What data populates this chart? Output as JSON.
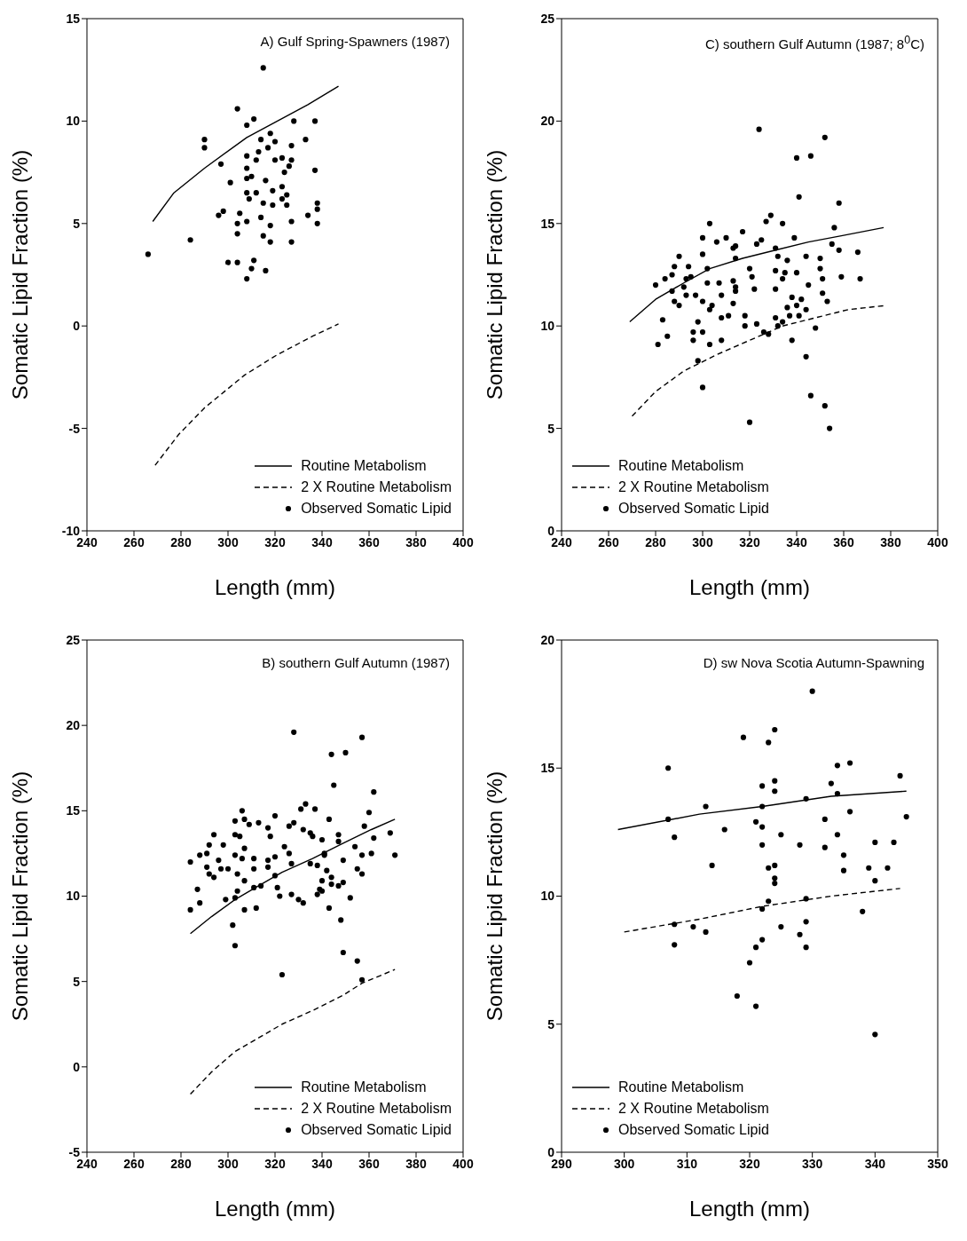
{
  "chart_data": [
    {
      "type": "scatter",
      "title": "A) Gulf Spring-Spawners (1987)",
      "xlabel": "Length (mm)",
      "ylabel": "Somatic Lipid Fraction (%)",
      "xlim": [
        240,
        400
      ],
      "xticks": [
        240,
        260,
        280,
        300,
        320,
        340,
        360,
        380,
        400
      ],
      "ylim": [
        -10,
        15
      ],
      "yticks": [
        -10,
        -5,
        0,
        5,
        10,
        15
      ],
      "legend": "bottom right",
      "series": [
        {
          "name": "Routine Metabolism",
          "type": "line",
          "color": "#000000",
          "line_style": "solid",
          "x": [
            268,
            277,
            290,
            308,
            321,
            334,
            347
          ],
          "values": [
            5.1,
            6.5,
            7.7,
            9.2,
            10.0,
            10.8,
            11.7
          ]
        },
        {
          "name": "2 X Routine Metabolism",
          "type": "line",
          "color": "#000000",
          "line_style": "dashed",
          "x": [
            269,
            279,
            290,
            307,
            321,
            336,
            347
          ],
          "values": [
            -6.8,
            -5.3,
            -4.0,
            -2.4,
            -1.4,
            -0.5,
            0.1
          ]
        },
        {
          "name": "Observed Somatic Lipid",
          "type": "scatter",
          "color": "#000000",
          "marker": "circle",
          "x": [
            315,
            304,
            311,
            308,
            290,
            290,
            318,
            314,
            320,
            317,
            313,
            327,
            328,
            337,
            333,
            308,
            312,
            320,
            323,
            327,
            297,
            308,
            326,
            324,
            337,
            310,
            301,
            308,
            316,
            308,
            319,
            323,
            312,
            309,
            325,
            323,
            315,
            319,
            325,
            338,
            338,
            296,
            298,
            305,
            308,
            314,
            304,
            304,
            318,
            327,
            334,
            338,
            315,
            318,
            327,
            284,
            266,
            300,
            304,
            311,
            310,
            316,
            308
          ],
          "values": [
            12.6,
            10.6,
            10.1,
            9.8,
            9.1,
            8.7,
            9.4,
            9.1,
            9.0,
            8.7,
            8.5,
            8.8,
            10.0,
            10.0,
            9.1,
            8.3,
            8.1,
            8.1,
            8.2,
            8.1,
            7.9,
            7.7,
            7.8,
            7.5,
            7.6,
            7.3,
            7.0,
            7.2,
            7.1,
            6.5,
            6.6,
            6.8,
            6.5,
            6.2,
            6.4,
            6.2,
            6.0,
            5.9,
            5.9,
            6.0,
            5.7,
            5.4,
            5.6,
            5.5,
            5.1,
            5.3,
            5.0,
            4.5,
            4.9,
            5.1,
            5.4,
            5.0,
            4.4,
            4.1,
            4.1,
            4.2,
            3.5,
            3.1,
            3.1,
            3.2,
            2.8,
            2.7,
            2.3
          ]
        }
      ]
    },
    {
      "type": "scatter",
      "title": "C) southern Gulf Autumn (1987; 8$^{0}$C)",
      "xlabel": "Length (mm)",
      "ylabel": "Somatic Lipid Fraction (%)",
      "xlim": [
        240,
        400
      ],
      "xticks": [
        240,
        260,
        280,
        300,
        320,
        340,
        360,
        380,
        400
      ],
      "ylim": [
        0,
        25
      ],
      "yticks": [
        0,
        5,
        10,
        15,
        20,
        25
      ],
      "legend": "bottom left",
      "series": [
        {
          "name": "Routine Metabolism",
          "type": "line",
          "color": "#000000",
          "line_style": "solid",
          "x": [
            269,
            280,
            292,
            303,
            317,
            331,
            345,
            359,
            377
          ],
          "values": [
            10.2,
            11.3,
            12.1,
            12.8,
            13.3,
            13.7,
            14.1,
            14.4,
            14.8
          ]
        },
        {
          "name": "2 X Routine Metabolism",
          "type": "line",
          "color": "#000000",
          "line_style": "dashed",
          "x": [
            270,
            280,
            292,
            306,
            320,
            334,
            348,
            362,
            378
          ],
          "values": [
            5.6,
            6.8,
            7.8,
            8.6,
            9.3,
            10.0,
            10.4,
            10.8,
            11.0
          ]
        },
        {
          "name": "Observed Somatic Lipid",
          "type": "scatter",
          "color": "#000000",
          "marker": "circle",
          "x": [
            324,
            352,
            340,
            346,
            341,
            358,
            329,
            327,
            303,
            334,
            356,
            317,
            300,
            306,
            310,
            323,
            325,
            313,
            314,
            339,
            355,
            331,
            358,
            366,
            290,
            300,
            314,
            332,
            336,
            344,
            350,
            288,
            294,
            302,
            320,
            331,
            335,
            340,
            350,
            284,
            287,
            293,
            295,
            302,
            307,
            313,
            321,
            334,
            351,
            359,
            367,
            280,
            287,
            292,
            314,
            322,
            331,
            345,
            293,
            297,
            308,
            314,
            338,
            342,
            351,
            288,
            290,
            300,
            304,
            313,
            340,
            353,
            336,
            344,
            303,
            308,
            311,
            318,
            331,
            334,
            337,
            341,
            283,
            298,
            318,
            323,
            332,
            348,
            296,
            300,
            326,
            328,
            281,
            285,
            296,
            303,
            308,
            338,
            298,
            344,
            300,
            346,
            352,
            320,
            354
          ],
          "values": [
            19.6,
            19.2,
            18.2,
            18.3,
            16.3,
            16.0,
            15.4,
            15.1,
            15.0,
            15.0,
            14.8,
            14.6,
            14.3,
            14.1,
            14.3,
            14.0,
            14.2,
            13.8,
            13.9,
            14.3,
            14.0,
            13.8,
            13.7,
            13.6,
            13.4,
            13.5,
            13.3,
            13.4,
            13.2,
            13.4,
            13.3,
            12.9,
            12.9,
            12.8,
            12.8,
            12.7,
            12.6,
            12.6,
            12.8,
            12.3,
            12.5,
            12.3,
            12.4,
            12.1,
            12.1,
            12.2,
            12.4,
            12.3,
            12.3,
            12.4,
            12.3,
            12.0,
            11.7,
            11.9,
            11.9,
            11.8,
            11.8,
            12.0,
            11.5,
            11.5,
            11.5,
            11.7,
            11.4,
            11.3,
            11.6,
            11.2,
            11.0,
            11.2,
            11.0,
            11.1,
            11.0,
            11.2,
            10.9,
            10.8,
            10.8,
            10.4,
            10.5,
            10.5,
            10.4,
            10.2,
            10.5,
            10.5,
            10.3,
            10.2,
            10.0,
            10.1,
            10.0,
            9.9,
            9.7,
            9.7,
            9.7,
            9.6,
            9.1,
            9.5,
            9.3,
            9.1,
            9.3,
            9.3,
            8.3,
            8.5,
            7.0,
            6.6,
            6.1,
            5.3,
            5.0
          ]
        }
      ]
    },
    {
      "type": "scatter",
      "title": "B) southern Gulf Autumn (1987)",
      "xlabel": "Length (mm)",
      "ylabel": "Somatic Lipid Fraction (%)",
      "xlim": [
        240,
        400
      ],
      "xticks": [
        240,
        260,
        280,
        300,
        320,
        340,
        360,
        380,
        400
      ],
      "ylim": [
        -5,
        25
      ],
      "yticks": [
        -5,
        0,
        5,
        10,
        15,
        20,
        25
      ],
      "legend": "bottom right",
      "series": [
        {
          "name": "Routine Metabolism",
          "type": "line",
          "color": "#000000",
          "line_style": "solid",
          "x": [
            284,
            293,
            303,
            313,
            323,
            336,
            349,
            361,
            371
          ],
          "values": [
            7.8,
            8.8,
            9.8,
            10.6,
            11.4,
            12.2,
            13.1,
            13.9,
            14.5
          ]
        },
        {
          "name": "2 X Routine Metabolism",
          "type": "line",
          "color": "#000000",
          "line_style": "dashed",
          "x": [
            284,
            293,
            303,
            313,
            323,
            336,
            349,
            357,
            371
          ],
          "values": [
            -1.6,
            -0.3,
            0.9,
            1.7,
            2.5,
            3.3,
            4.2,
            4.9,
            5.7
          ]
        },
        {
          "name": "Observed Somatic Lipid",
          "type": "scatter",
          "color": "#000000",
          "marker": "circle",
          "x": [
            328,
            357,
            344,
            350,
            345,
            362,
            333,
            331,
            306,
            337,
            360,
            320,
            303,
            307,
            309,
            313,
            328,
            326,
            317,
            318,
            332,
            343,
            358,
            369,
            294,
            303,
            305,
            335,
            336,
            340,
            347,
            362,
            292,
            298,
            307,
            324,
            326,
            341,
            347,
            354,
            357,
            361,
            371,
            284,
            288,
            291,
            296,
            303,
            306,
            311,
            317,
            320,
            335,
            338,
            341,
            349,
            291,
            297,
            300,
            311,
            317,
            327,
            355,
            357,
            292,
            294,
            304,
            307,
            320,
            342,
            344,
            349,
            340,
            344,
            347,
            287,
            304,
            311,
            314,
            321,
            339,
            340,
            338,
            299,
            303,
            322,
            327,
            330,
            332,
            352,
            288,
            284,
            307,
            312,
            343,
            302,
            348,
            303,
            349,
            355,
            323,
            357
          ],
          "values": [
            19.6,
            19.3,
            18.3,
            18.4,
            16.5,
            16.1,
            15.4,
            15.1,
            15.0,
            15.1,
            14.9,
            14.7,
            14.4,
            14.5,
            14.2,
            14.3,
            14.3,
            14.1,
            14.0,
            13.5,
            13.9,
            14.5,
            14.1,
            13.7,
            13.6,
            13.6,
            13.5,
            13.7,
            13.5,
            13.3,
            13.6,
            13.4,
            13.0,
            13.0,
            12.8,
            12.9,
            12.5,
            12.5,
            13.2,
            12.9,
            12.4,
            12.5,
            12.4,
            12.0,
            12.4,
            12.5,
            12.1,
            12.4,
            12.2,
            12.2,
            12.1,
            12.3,
            11.9,
            11.8,
            12.4,
            12.1,
            11.7,
            11.6,
            11.6,
            11.6,
            11.7,
            11.9,
            11.6,
            11.3,
            11.3,
            11.1,
            11.3,
            10.9,
            11.2,
            11.5,
            11.1,
            10.8,
            10.9,
            10.7,
            10.6,
            10.4,
            10.3,
            10.5,
            10.6,
            10.5,
            10.4,
            10.3,
            10.1,
            9.8,
            9.9,
            10.0,
            10.1,
            9.8,
            9.6,
            9.9,
            9.6,
            9.2,
            9.2,
            9.3,
            9.3,
            8.3,
            8.6,
            7.1,
            6.7,
            6.2,
            5.4,
            5.1
          ]
        }
      ]
    },
    {
      "type": "scatter",
      "title": "D) sw Nova Scotia Autumn-Spawning",
      "xlabel": "Length (mm)",
      "ylabel": "Somatic Lipid Fraction (%)",
      "xlim": [
        290,
        350
      ],
      "xticks": [
        290,
        300,
        310,
        320,
        330,
        340,
        350
      ],
      "ylim": [
        0,
        20
      ],
      "yticks": [
        0,
        5,
        10,
        15,
        20
      ],
      "legend": "bottom left",
      "series": [
        {
          "name": "Routine Metabolism",
          "type": "line",
          "color": "#000000",
          "line_style": "solid",
          "x": [
            299,
            312,
            322,
            333,
            345
          ],
          "values": [
            12.6,
            13.2,
            13.5,
            13.9,
            14.1
          ]
        },
        {
          "name": "2 X Routine Metabolism",
          "type": "line",
          "color": "#000000",
          "line_style": "dashed",
          "x": [
            300,
            312,
            322,
            333,
            344
          ],
          "values": [
            8.6,
            9.1,
            9.6,
            10.0,
            10.3
          ]
        },
        {
          "name": "Observed Somatic Lipid",
          "type": "scatter",
          "color": "#000000",
          "marker": "circle",
          "x": [
            330,
            324,
            319,
            323,
            307,
            334,
            336,
            344,
            322,
            324,
            324,
            333,
            334,
            329,
            313,
            322,
            307,
            336,
            345,
            321,
            322,
            316,
            332,
            308,
            325,
            334,
            322,
            328,
            332,
            340,
            343,
            335,
            314,
            323,
            324,
            339,
            342,
            335,
            324,
            324,
            340,
            323,
            329,
            322,
            338,
            308,
            311,
            313,
            329,
            325,
            328,
            308,
            322,
            321,
            329,
            320,
            318,
            321,
            340
          ],
          "values": [
            18.0,
            16.5,
            16.2,
            16.0,
            15.0,
            15.1,
            15.2,
            14.7,
            14.3,
            14.5,
            14.1,
            14.4,
            14.0,
            13.8,
            13.5,
            13.5,
            13.0,
            13.3,
            13.1,
            12.9,
            12.7,
            12.6,
            13.0,
            12.3,
            12.4,
            12.4,
            12.0,
            12.0,
            11.9,
            12.1,
            12.1,
            11.6,
            11.2,
            11.1,
            11.2,
            11.1,
            11.1,
            11.0,
            10.7,
            10.5,
            10.6,
            9.8,
            9.9,
            9.5,
            9.4,
            8.9,
            8.8,
            8.6,
            9.0,
            8.8,
            8.5,
            8.1,
            8.3,
            8.0,
            8.0,
            7.4,
            6.1,
            5.7,
            4.6
          ]
        }
      ]
    }
  ]
}
